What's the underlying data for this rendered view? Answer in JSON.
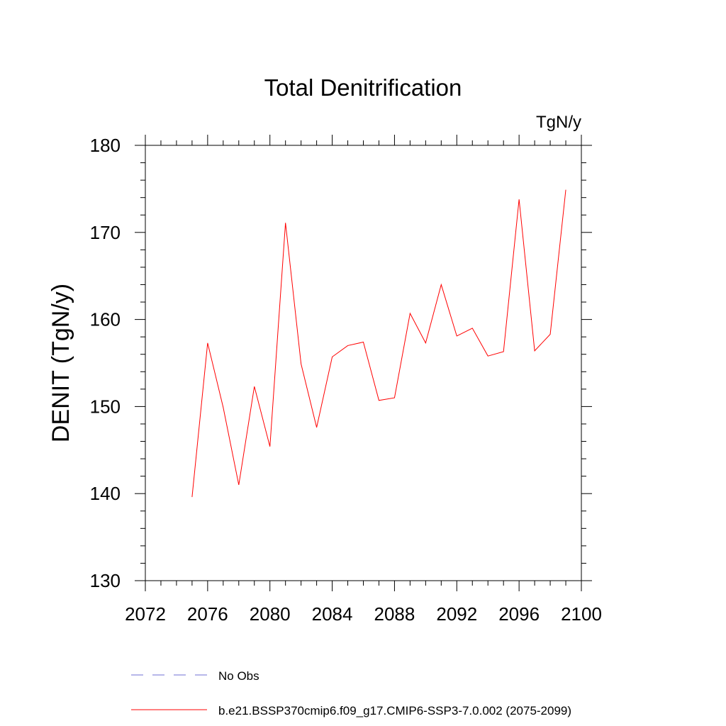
{
  "chart_data": {
    "type": "line",
    "title": "Total Denitrification",
    "units": "TgN/y",
    "ylabel": "DENIT  (TgN/y)",
    "xlabel": "",
    "xlim": [
      2072,
      2100
    ],
    "ylim": [
      130,
      180
    ],
    "xticks": [
      2072,
      2076,
      2080,
      2084,
      2088,
      2092,
      2096,
      2100
    ],
    "yticks": [
      130,
      140,
      150,
      160,
      170,
      180
    ],
    "grid": false,
    "legend_position": "bottom-left",
    "series": [
      {
        "name": "b.e21.BSSP370cmip6.f09_g17.CMIP6-SSP3-7.0.002 (2075-2099)",
        "color": "#ff0000",
        "style": "solid",
        "x": [
          2075,
          2076,
          2077,
          2078,
          2079,
          2080,
          2081,
          2082,
          2083,
          2084,
          2085,
          2086,
          2087,
          2088,
          2089,
          2090,
          2091,
          2092,
          2093,
          2094,
          2095,
          2096,
          2097,
          2098,
          2099
        ],
        "y": [
          139.6,
          157.3,
          149.9,
          141.0,
          152.3,
          145.4,
          171.1,
          154.9,
          147.6,
          155.7,
          157.0,
          157.4,
          150.7,
          151.0,
          160.7,
          157.3,
          164.0,
          158.1,
          159.0,
          155.8,
          156.3,
          173.8,
          156.4,
          158.3,
          174.9
        ]
      }
    ],
    "legend": [
      {
        "label": "No Obs",
        "color": "#6f6fd6",
        "style": "dashed"
      },
      {
        "label": "b.e21.BSSP370cmip6.f09_g17.CMIP6-SSP3-7.0.002 (2075-2099)",
        "color": "#ff0000",
        "style": "solid"
      }
    ]
  }
}
